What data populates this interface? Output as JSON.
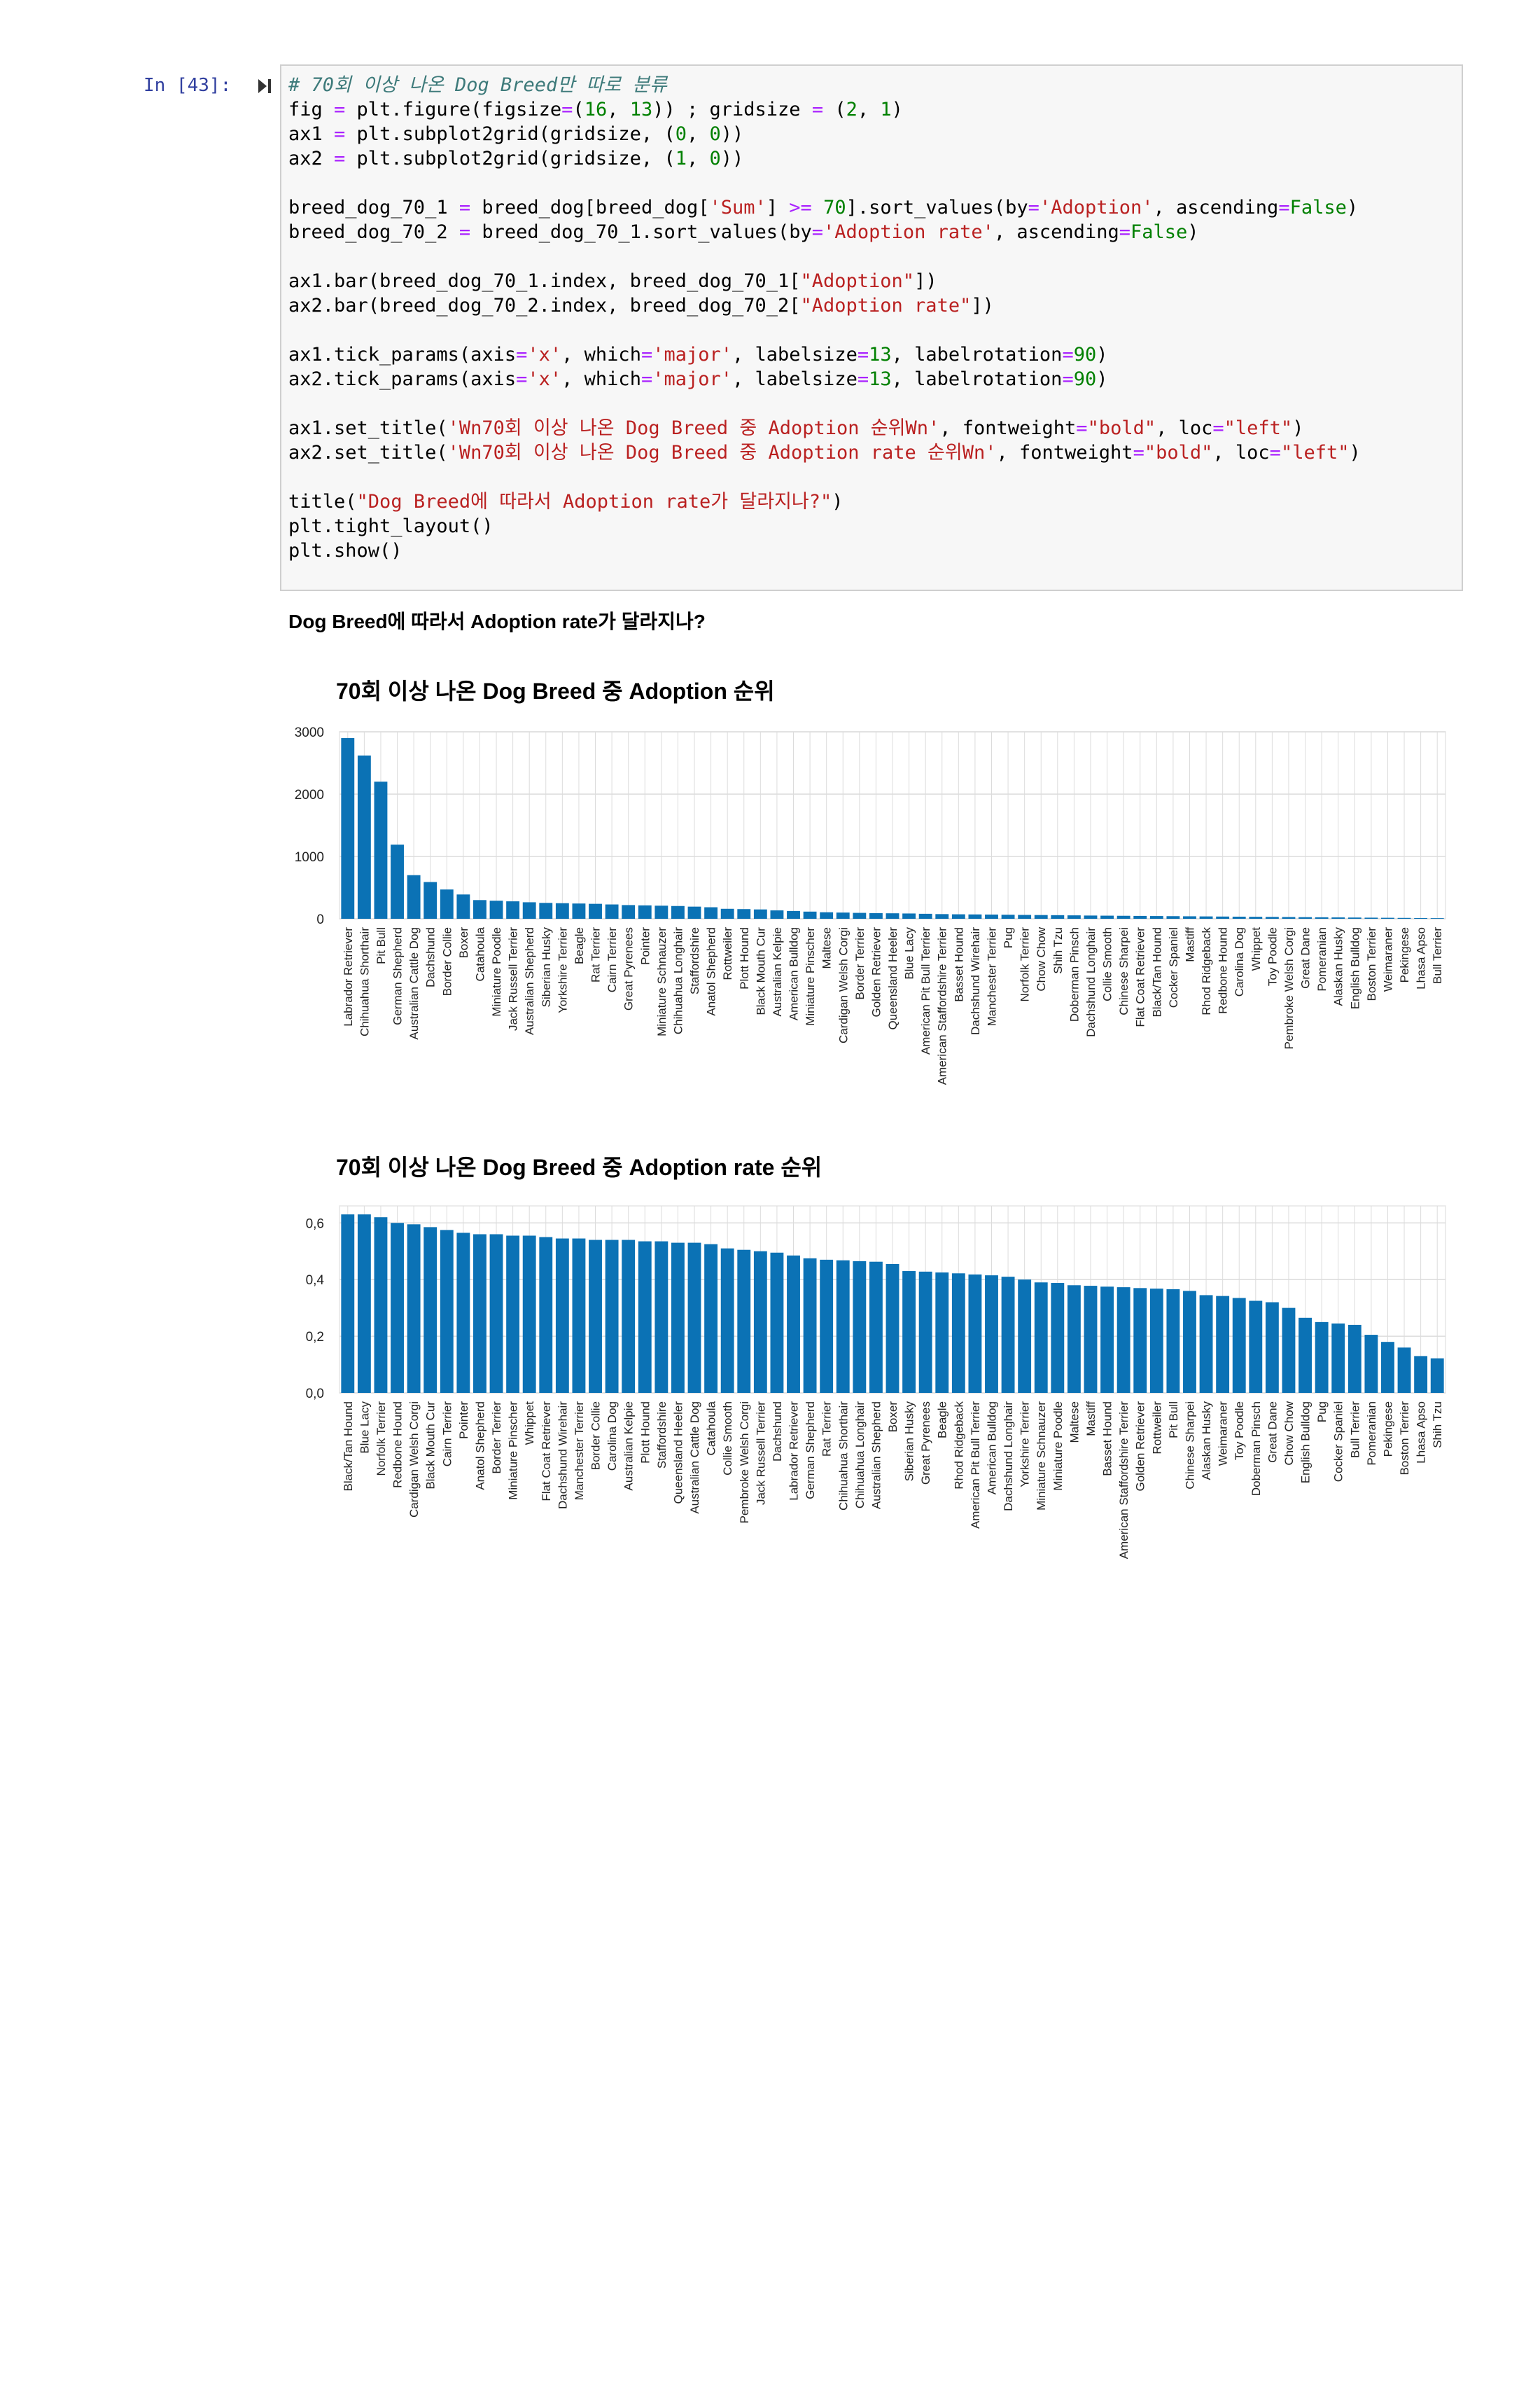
{
  "cell": {
    "prompt": "In [43]:",
    "code_lines": [
      [
        {
          "t": "# 70회 이상 나온 Dog Breed만 따로 분류",
          "c": "cm"
        }
      ],
      [
        {
          "t": "fig "
        },
        {
          "t": "=",
          "c": "op"
        },
        {
          "t": " plt.figure(figsize"
        },
        {
          "t": "=",
          "c": "op"
        },
        {
          "t": "("
        },
        {
          "t": "16",
          "c": "num"
        },
        {
          "t": ", "
        },
        {
          "t": "13",
          "c": "num"
        },
        {
          "t": ")) ; gridsize "
        },
        {
          "t": "=",
          "c": "op"
        },
        {
          "t": " ("
        },
        {
          "t": "2",
          "c": "num"
        },
        {
          "t": ", "
        },
        {
          "t": "1",
          "c": "num"
        },
        {
          "t": ")"
        }
      ],
      [
        {
          "t": "ax1 "
        },
        {
          "t": "=",
          "c": "op"
        },
        {
          "t": " plt.subplot2grid(gridsize, ("
        },
        {
          "t": "0",
          "c": "num"
        },
        {
          "t": ", "
        },
        {
          "t": "0",
          "c": "num"
        },
        {
          "t": "))"
        }
      ],
      [
        {
          "t": "ax2 "
        },
        {
          "t": "=",
          "c": "op"
        },
        {
          "t": " plt.subplot2grid(gridsize, ("
        },
        {
          "t": "1",
          "c": "num"
        },
        {
          "t": ", "
        },
        {
          "t": "0",
          "c": "num"
        },
        {
          "t": "))"
        }
      ],
      [],
      [
        {
          "t": "breed_dog_70_1 "
        },
        {
          "t": "=",
          "c": "op"
        },
        {
          "t": " breed_dog[breed_dog["
        },
        {
          "t": "'Sum'",
          "c": "str"
        },
        {
          "t": "] "
        },
        {
          "t": ">=",
          "c": "op"
        },
        {
          "t": " "
        },
        {
          "t": "70",
          "c": "num"
        },
        {
          "t": "].sort_values(by"
        },
        {
          "t": "=",
          "c": "op"
        },
        {
          "t": "'Adoption'",
          "c": "str"
        },
        {
          "t": ", ascending"
        },
        {
          "t": "=",
          "c": "op"
        },
        {
          "t": "False",
          "c": "kw"
        },
        {
          "t": ")"
        }
      ],
      [
        {
          "t": "breed_dog_70_2 "
        },
        {
          "t": "=",
          "c": "op"
        },
        {
          "t": " breed_dog_70_1.sort_values(by"
        },
        {
          "t": "=",
          "c": "op"
        },
        {
          "t": "'Adoption rate'",
          "c": "str"
        },
        {
          "t": ", ascending"
        },
        {
          "t": "=",
          "c": "op"
        },
        {
          "t": "False",
          "c": "kw"
        },
        {
          "t": ")"
        }
      ],
      [],
      [
        {
          "t": "ax1.bar(breed_dog_70_1.index, breed_dog_70_1["
        },
        {
          "t": "\"Adoption\"",
          "c": "str"
        },
        {
          "t": "])"
        }
      ],
      [
        {
          "t": "ax2.bar(breed_dog_70_2.index, breed_dog_70_2["
        },
        {
          "t": "\"Adoption rate\"",
          "c": "str"
        },
        {
          "t": "])"
        }
      ],
      [],
      [
        {
          "t": "ax1.tick_params(axis"
        },
        {
          "t": "=",
          "c": "op"
        },
        {
          "t": "'x'",
          "c": "str"
        },
        {
          "t": ", which"
        },
        {
          "t": "=",
          "c": "op"
        },
        {
          "t": "'major'",
          "c": "str"
        },
        {
          "t": ", labelsize"
        },
        {
          "t": "=",
          "c": "op"
        },
        {
          "t": "13",
          "c": "num"
        },
        {
          "t": ", labelrotation"
        },
        {
          "t": "=",
          "c": "op"
        },
        {
          "t": "90",
          "c": "num"
        },
        {
          "t": ")"
        }
      ],
      [
        {
          "t": "ax2.tick_params(axis"
        },
        {
          "t": "=",
          "c": "op"
        },
        {
          "t": "'x'",
          "c": "str"
        },
        {
          "t": ", which"
        },
        {
          "t": "=",
          "c": "op"
        },
        {
          "t": "'major'",
          "c": "str"
        },
        {
          "t": ", labelsize"
        },
        {
          "t": "=",
          "c": "op"
        },
        {
          "t": "13",
          "c": "num"
        },
        {
          "t": ", labelrotation"
        },
        {
          "t": "=",
          "c": "op"
        },
        {
          "t": "90",
          "c": "num"
        },
        {
          "t": ")"
        }
      ],
      [],
      [
        {
          "t": "ax1.set_title("
        },
        {
          "t": "'Wn70회 이상 나온 Dog Breed 중 Adoption 순위Wn'",
          "c": "str"
        },
        {
          "t": ", fontweight"
        },
        {
          "t": "=",
          "c": "op"
        },
        {
          "t": "\"bold\"",
          "c": "str"
        },
        {
          "t": ", loc"
        },
        {
          "t": "=",
          "c": "op"
        },
        {
          "t": "\"left\"",
          "c": "str"
        },
        {
          "t": ")"
        }
      ],
      [
        {
          "t": "ax2.set_title("
        },
        {
          "t": "'Wn70회 이상 나온 Dog Breed 중 Adoption rate 순위Wn'",
          "c": "str"
        },
        {
          "t": ", fontweight"
        },
        {
          "t": "=",
          "c": "op"
        },
        {
          "t": "\"bold\"",
          "c": "str"
        },
        {
          "t": ", loc"
        },
        {
          "t": "=",
          "c": "op"
        },
        {
          "t": "\"left\"",
          "c": "str"
        },
        {
          "t": ")"
        }
      ],
      [],
      [
        {
          "t": "title("
        },
        {
          "t": "\"Dog Breed에 따라서 Adoption rate가 달라지나?\"",
          "c": "str"
        },
        {
          "t": ")"
        }
      ],
      [
        {
          "t": "plt.tight_layout()"
        }
      ],
      [
        {
          "t": "plt.show()"
        }
      ]
    ]
  },
  "output": {
    "figure_title": "Dog Breed에 따라서 Adoption rate가 달라지나?"
  },
  "colors": {
    "bar": "#0b72b5",
    "grid": "#dcdcdc",
    "prompt": "#303f9f"
  },
  "icons": {
    "run": "run-cell-icon"
  },
  "chart_data": [
    {
      "type": "bar",
      "title": "70회 이상 나온 Dog Breed 중 Adoption 순위",
      "ylim": [
        0,
        3000
      ],
      "yticks": [
        "0",
        "1000",
        "2000",
        "3000"
      ],
      "grid": true,
      "categories": [
        "Labrador Retriever",
        "Chihuahua Shorthair",
        "Pit Bull",
        "German Shepherd",
        "Australian Cattle Dog",
        "Dachshund",
        "Border Collie",
        "Boxer",
        "Catahoula",
        "Miniature Poodle",
        "Jack Russell Terrier",
        "Australian Shepherd",
        "Siberian Husky",
        "Yorkshire Terrier",
        "Beagle",
        "Rat Terrier",
        "Cairn Terrier",
        "Great Pyrenees",
        "Pointer",
        "Miniature Schnauzer",
        "Chihuahua Longhair",
        "Staffordshire",
        "Anatol Shepherd",
        "Rottweiler",
        "Plott Hound",
        "Black Mouth Cur",
        "Australian Kelpie",
        "American Bulldog",
        "Miniature Pinscher",
        "Maltese",
        "Cardigan Welsh Corgi",
        "Border Terrier",
        "Golden Retriever",
        "Queensland Heeler",
        "Blue Lacy",
        "American Pit Bull Terrier",
        "American Staffordshire Terrier",
        "Basset Hound",
        "Dachshund Wirehair",
        "Manchester Terrier",
        "Pug",
        "Norfolk Terrier",
        "Chow Chow",
        "Shih Tzu",
        "Doberman Pinsch",
        "Dachshund Longhair",
        "Collie Smooth",
        "Chinese Sharpei",
        "Flat Coat Retriever",
        "Black/Tan Hound",
        "Cocker Spaniel",
        "Mastiff",
        "Rhod Ridgeback",
        "Redbone Hound",
        "Carolina Dog",
        "Whippet",
        "Toy Poodle",
        "Pembroke Welsh Corgi",
        "Great Dane",
        "Pomeranian",
        "Alaskan Husky",
        "English Bulldog",
        "Boston Terrier",
        "Weimaraner",
        "Pekingese",
        "Lhasa Apso",
        "Bull Terrier"
      ],
      "values": [
        2900,
        2620,
        2200,
        1190,
        700,
        590,
        470,
        390,
        300,
        290,
        280,
        265,
        255,
        250,
        245,
        240,
        230,
        220,
        215,
        210,
        205,
        195,
        185,
        160,
        155,
        150,
        135,
        125,
        115,
        105,
        100,
        95,
        90,
        88,
        85,
        80,
        75,
        72,
        70,
        68,
        65,
        62,
        60,
        58,
        55,
        52,
        50,
        48,
        46,
        44,
        42,
        40,
        38,
        36,
        34,
        32,
        30,
        28,
        26,
        24,
        22,
        20,
        18,
        16,
        14,
        12,
        10
      ]
    },
    {
      "type": "bar",
      "title": "70회 이상 나온 Dog Breed 중 Adoption rate 순위",
      "ylim": [
        0,
        0.66
      ],
      "yticks": [
        "0,0",
        "0,2",
        "0,4",
        "0,6"
      ],
      "grid": true,
      "categories": [
        "Black/Tan Hound",
        "Blue Lacy",
        "Norfolk Terrier",
        "Redbone Hound",
        "Cardigan Welsh Corgi",
        "Black Mouth Cur",
        "Cairn Terrier",
        "Pointer",
        "Anatol Shepherd",
        "Border Terrier",
        "Miniature Pinscher",
        "Whippet",
        "Flat Coat Retriever",
        "Dachshund Wirehair",
        "Manchester Terrier",
        "Border Collie",
        "Carolina Dog",
        "Australian Kelpie",
        "Plott Hound",
        "Staffordshire",
        "Queensland Heeler",
        "Australian Cattle Dog",
        "Catahoula",
        "Collie Smooth",
        "Pembroke Welsh Corgi",
        "Jack Russell Terrier",
        "Dachshund",
        "Labrador Retriever",
        "German Shepherd",
        "Rat Terrier",
        "Chihuahua Shorthair",
        "Chihuahua Longhair",
        "Australian Shepherd",
        "Boxer",
        "Siberian Husky",
        "Great Pyrenees",
        "Beagle",
        "Rhod Ridgeback",
        "American Pit Bull Terrier",
        "American Bulldog",
        "Dachshund Longhair",
        "Yorkshire Terrier",
        "Miniature Schnauzer",
        "Miniature Poodle",
        "Maltese",
        "Mastiff",
        "Basset Hound",
        "American Staffordshire Terrier",
        "Golden Retriever",
        "Rottweiler",
        "Pit Bull",
        "Chinese Sharpei",
        "Alaskan Husky",
        "Weimaraner",
        "Toy Poodle",
        "Doberman Pinsch",
        "Great Dane",
        "Chow Chow",
        "English Bulldog",
        "Pug",
        "Cocker Spaniel",
        "Bull Terrier",
        "Pomeranian",
        "Pekingese",
        "Boston Terrier",
        "Lhasa Apso",
        "Shih Tzu"
      ],
      "values": [
        0.63,
        0.63,
        0.62,
        0.6,
        0.595,
        0.585,
        0.575,
        0.565,
        0.56,
        0.56,
        0.555,
        0.555,
        0.55,
        0.545,
        0.545,
        0.54,
        0.54,
        0.54,
        0.535,
        0.535,
        0.53,
        0.53,
        0.525,
        0.51,
        0.505,
        0.5,
        0.495,
        0.485,
        0.475,
        0.47,
        0.468,
        0.465,
        0.463,
        0.455,
        0.43,
        0.428,
        0.425,
        0.422,
        0.418,
        0.415,
        0.41,
        0.4,
        0.39,
        0.388,
        0.38,
        0.378,
        0.375,
        0.373,
        0.37,
        0.368,
        0.366,
        0.36,
        0.345,
        0.342,
        0.335,
        0.325,
        0.32,
        0.3,
        0.265,
        0.25,
        0.245,
        0.24,
        0.205,
        0.18,
        0.16,
        0.13,
        0.122
      ]
    }
  ]
}
